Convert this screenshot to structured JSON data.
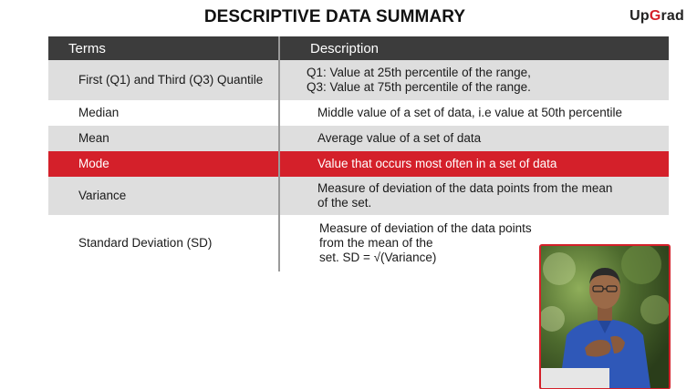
{
  "header": {
    "title": "DESCRIPTIVE DATA SUMMARY",
    "logo_part1": "Up",
    "logo_part2": "G",
    "logo_part3": "rad"
  },
  "table": {
    "columns": [
      "Terms",
      "Description"
    ],
    "rows": [
      {
        "term": "First (Q1) and Third (Q3) Quantile",
        "description_lines": [
          "Q1: Value at 25th percentile of the range,",
          "Q3: Value at 75th percentile of the range."
        ]
      },
      {
        "term": "Median",
        "description_lines": [
          "Middle value of a set of data, i.e value at 50th percentile"
        ]
      },
      {
        "term": "Mean",
        "description_lines": [
          "Average value of a set of data"
        ]
      },
      {
        "term": "Mode",
        "description_lines": [
          "Value that occurs most often in a set of data"
        ]
      },
      {
        "term": "Variance",
        "description_lines": [
          "Measure of deviation of the data points from the mean",
          "of the set."
        ]
      },
      {
        "term": "Standard Deviation (SD)",
        "description_lines": [
          "Measure of deviation of the data points",
          "from the mean of the",
          "set. SD = √(Variance)"
        ]
      }
    ],
    "highlighted_row": "Mode"
  },
  "colors": {
    "header_bg": "#3c3c3c",
    "shade_row": "#dedede",
    "highlight": "#d4202a"
  }
}
